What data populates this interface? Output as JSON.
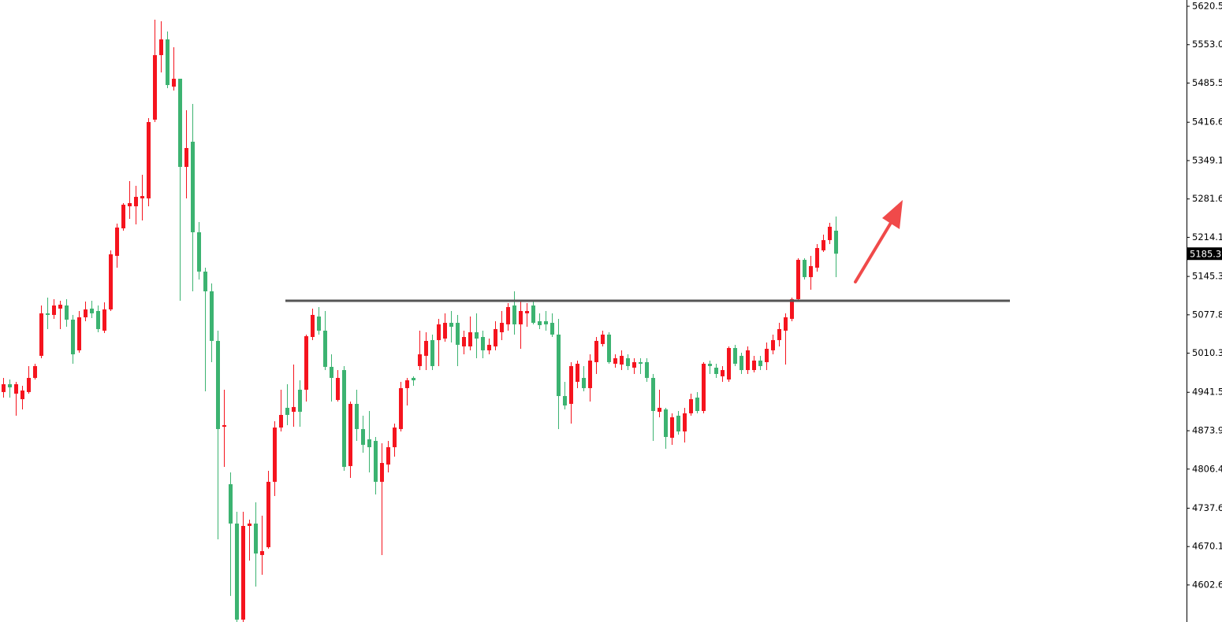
{
  "chart_data": {
    "type": "candlestick",
    "up_color": "#f5141e",
    "down_color": "#3cb371",
    "level_color": "#555555",
    "ylim": [
      4537.4,
      5631.6
    ],
    "yticks": [
      5620.5,
      {
        "value": 5553,
        "label": "5553.0"
      },
      5485.5,
      5416.6,
      5349.1,
      5281.6,
      5214.1,
      5145.3,
      5077.8,
      5010.3,
      4941.5,
      4873.9,
      4806.4,
      4737.6,
      4670.1,
      4602.6
    ],
    "last_price": 5185.3,
    "level": 5102.5,
    "candles": [
      [
        4941.9,
        4966.8,
        4932.2,
        4955.7
      ],
      [
        4955.7,
        4964.0,
        4932.2,
        4950.2
      ],
      [
        4939.1,
        4959.9,
        4900.3,
        4955.7
      ],
      [
        4929.4,
        4952.9,
        4911.4,
        4944.6
      ],
      [
        4941.9,
        4987.6,
        4939.1,
        4966.8
      ],
      [
        4966.8,
        4991.7,
        4964.0,
        4987.6
      ],
      [
        5005.6,
        5094.2,
        5001.4,
        5080.4
      ],
      [
        5080.4,
        5108.1,
        5052.7,
        5077.6
      ],
      [
        5077.6,
        5105.3,
        5070.7,
        5094.2
      ],
      [
        5088.7,
        5102.5,
        5052.7,
        5095.6
      ],
      [
        5094.2,
        5105.3,
        5056.8,
        5069.3
      ],
      [
        5069.3,
        5077.6,
        4991.7,
        5008.3
      ],
      [
        5015.3,
        5084.5,
        5011.1,
        5073.4
      ],
      [
        5073.4,
        5101.1,
        5066.5,
        5087.3
      ],
      [
        5088.7,
        5102.5,
        5072.1,
        5080.4
      ],
      [
        5084.5,
        5094.2,
        5047.1,
        5052.7
      ],
      [
        5049.9,
        5099.8,
        5045.7,
        5087.3
      ],
      [
        5087.3,
        5191.2,
        5084.5,
        5184.2
      ],
      [
        5181.5,
        5238.3,
        5160.7,
        5231.3
      ],
      [
        5229.9,
        5274.3,
        5225.8,
        5271.5
      ],
      [
        5268.7,
        5313.0,
        5246.6,
        5274.3
      ],
      [
        5268.7,
        5304.7,
        5236.9,
        5285.3
      ],
      [
        5282.6,
        5324.1,
        5243.8,
        5286.7
      ],
      [
        5282.6,
        5423.8,
        5268.7,
        5416.9
      ],
      [
        5421.1,
        5597.0,
        5416.9,
        5534.6
      ],
      [
        5534.6,
        5594.2,
        5504.2,
        5562.3
      ],
      [
        5562.3,
        5576.2,
        5476.5,
        5482.0
      ],
      [
        5479.2,
        5548.5,
        5472.3,
        5493.1
      ],
      [
        5493.1,
        5493.1,
        5102.5,
        5338.0
      ],
      [
        5338.0,
        5437.7,
        5282.6,
        5371.2
      ],
      [
        5382.3,
        5448.8,
        5119.1,
        5223.0
      ],
      [
        5223.0,
        5241.0,
        5139.9,
        5153.8
      ],
      [
        5153.8,
        5160.7,
        4943.3,
        5119.1
      ],
      [
        5119.1,
        5133.0,
        4994.5,
        5031.9
      ],
      [
        5031.9,
        5049.9,
        4682.9,
        4876.8
      ],
      [
        4880.9,
        4946.0,
        4810.3,
        4883.7
      ],
      [
        4779.8,
        4800.6,
        4583.2,
        4710.6
      ],
      [
        4710.6,
        4731.3,
        4537.4,
        4541.6
      ],
      [
        4541.6,
        4731.3,
        4537.4,
        4706.4
      ],
      [
        4706.4,
        4717.5,
        4645.5,
        4710.6
      ],
      [
        4710.6,
        4748.0,
        4599.8,
        4657.9
      ],
      [
        4655.2,
        4724.4,
        4620.5,
        4662.1
      ],
      [
        4669.0,
        4803.4,
        4666.3,
        4784.0
      ],
      [
        4784.0,
        4890.6,
        4759.0,
        4879.5
      ],
      [
        4879.5,
        4946.0,
        4872.6,
        4901.7
      ],
      [
        4914.2,
        4955.7,
        4883.7,
        4901.7
      ],
      [
        4907.2,
        4990.3,
        4880.9,
        4915.6
      ],
      [
        4946.0,
        4962.6,
        4880.9,
        4907.2
      ],
      [
        4946.0,
        5043.0,
        4925.2,
        5040.2
      ],
      [
        5038.8,
        5088.7,
        5033.3,
        5077.6
      ],
      [
        5074.8,
        5091.4,
        5043.0,
        5049.9
      ],
      [
        5049.9,
        5084.5,
        4980.6,
        4986.2
      ],
      [
        4986.2,
        5008.3,
        4925.2,
        4966.8
      ],
      [
        4928.0,
        4980.6,
        4925.2,
        4966.8
      ],
      [
        4980.6,
        4987.6,
        4803.4,
        4810.3
      ],
      [
        4811.7,
        4925.2,
        4790.9,
        4921.1
      ],
      [
        4921.1,
        4946.0,
        4856.0,
        4876.8
      ],
      [
        4876.8,
        4900.3,
        4835.2,
        4849.1
      ],
      [
        4858.8,
        4908.6,
        4800.6,
        4844.9
      ],
      [
        4856.0,
        4862.9,
        4761.8,
        4784.0
      ],
      [
        4784.0,
        4851.8,
        4655.2,
        4817.2
      ],
      [
        4814.4,
        4856.0,
        4800.6,
        4844.9
      ],
      [
        4844.9,
        4886.5,
        4828.3,
        4879.5
      ],
      [
        4876.8,
        4959.9,
        4872.6,
        4948.8
      ],
      [
        4948.8,
        4966.8,
        4918.3,
        4962.6
      ],
      [
        4966.8,
        4969.6,
        4952.9,
        4962.6
      ],
      [
        4987.6,
        5049.9,
        4980.6,
        5008.3
      ],
      [
        5005.6,
        5047.1,
        4980.6,
        5031.9
      ],
      [
        5033.3,
        5043.0,
        4980.6,
        4987.6
      ],
      [
        5033.3,
        5070.7,
        4987.6,
        5061.0
      ],
      [
        5036.0,
        5080.4,
        5030.5,
        5063.7
      ],
      [
        5063.7,
        5084.5,
        5029.1,
        5056.8
      ],
      [
        5063.7,
        5077.6,
        4987.6,
        5025.0
      ],
      [
        5022.2,
        5049.9,
        5008.3,
        5038.8
      ],
      [
        5022.2,
        5074.8,
        5015.3,
        5047.1
      ],
      [
        5047.1,
        5080.4,
        5001.4,
        5036.0
      ],
      [
        5038.8,
        5049.9,
        5001.4,
        5015.3
      ],
      [
        5015.3,
        5036.0,
        5008.3,
        5025.0
      ],
      [
        5022.2,
        5066.5,
        5015.3,
        5052.7
      ],
      [
        5047.1,
        5084.5,
        5033.3,
        5063.7
      ],
      [
        5061.0,
        5098.4,
        5049.9,
        5091.4
      ],
      [
        5094.2,
        5119.1,
        5043.0,
        5061.0
      ],
      [
        5061.0,
        5102.5,
        5018.0,
        5084.5
      ],
      [
        5080.4,
        5098.4,
        5056.8,
        5084.5
      ],
      [
        5094.2,
        5102.5,
        5061.0,
        5063.7
      ],
      [
        5066.5,
        5080.4,
        5052.7,
        5059.6
      ],
      [
        5066.5,
        5084.5,
        5049.9,
        5061.0
      ],
      [
        5063.7,
        5080.4,
        5038.8,
        5043.0
      ],
      [
        5043.0,
        5070.7,
        4876.8,
        4934.9
      ],
      [
        4934.9,
        4959.9,
        4911.4,
        4918.3
      ],
      [
        4921.1,
        4994.5,
        4886.5,
        4987.6
      ],
      [
        4959.9,
        4997.3,
        4948.8,
        4991.7
      ],
      [
        4966.8,
        4987.6,
        4943.3,
        4948.8
      ],
      [
        4948.8,
        5008.3,
        4925.2,
        4997.3
      ],
      [
        4994.5,
        5038.8,
        4973.7,
        5031.9
      ],
      [
        5026.4,
        5049.9,
        5022.2,
        5043.0
      ],
      [
        5043.0,
        5047.1,
        4991.7,
        4994.5
      ],
      [
        4991.7,
        5008.3,
        4984.8,
        5001.4
      ],
      [
        4990.3,
        5015.3,
        4980.6,
        5005.6
      ],
      [
        5001.4,
        5008.3,
        4980.6,
        4987.6
      ],
      [
        4984.8,
        5001.4,
        4973.7,
        4994.5
      ],
      [
        4994.5,
        5001.4,
        4973.7,
        4991.7
      ],
      [
        4994.5,
        5001.4,
        4959.9,
        4966.8
      ],
      [
        4966.8,
        4973.7,
        4856.0,
        4908.6
      ],
      [
        4907.2,
        4946.0,
        4897.5,
        4914.2
      ],
      [
        4911.4,
        4914.2,
        4842.1,
        4862.9
      ],
      [
        4861.5,
        4904.5,
        4849.1,
        4897.5
      ],
      [
        4900.3,
        4908.6,
        4867.1,
        4872.6
      ],
      [
        4872.6,
        4914.2,
        4853.2,
        4904.5
      ],
      [
        4904.5,
        4939.1,
        4900.3,
        4929.4
      ],
      [
        4932.2,
        4941.9,
        4904.5,
        4908.6
      ],
      [
        4908.6,
        4994.5,
        4904.5,
        4991.7
      ],
      [
        4991.7,
        4997.3,
        4973.7,
        4987.6
      ],
      [
        4984.8,
        4991.7,
        4966.8,
        4973.7
      ],
      [
        4969.6,
        4987.6,
        4959.9,
        4980.6
      ],
      [
        4964.0,
        5022.2,
        4959.9,
        5019.4
      ],
      [
        5019.4,
        5025.0,
        4987.6,
        4991.7
      ],
      [
        5005.6,
        5011.1,
        4973.7,
        4980.6
      ],
      [
        4980.6,
        5022.2,
        4973.7,
        5015.3
      ],
      [
        4980.6,
        5005.6,
        4976.5,
        4997.3
      ],
      [
        4997.3,
        5005.6,
        4980.6,
        4987.6
      ],
      [
        4994.5,
        5029.1,
        4980.6,
        5018.0
      ],
      [
        5015.3,
        5043.0,
        5008.3,
        5033.3
      ],
      [
        5033.3,
        5063.7,
        5022.2,
        5052.7
      ],
      [
        5049.9,
        5080.4,
        4990.3,
        5073.4
      ],
      [
        5070.7,
        5108.1,
        5066.5,
        5105.3
      ],
      [
        5105.3,
        5177.3,
        5102.5,
        5174.5
      ],
      [
        5174.5,
        5177.3,
        5139.9,
        5144.1
      ],
      [
        5144.1,
        5181.5,
        5121.9,
        5163.5
      ],
      [
        5160.7,
        5202.2,
        5153.8,
        5195.3
      ],
      [
        5191.2,
        5218.9,
        5188.4,
        5209.2
      ],
      [
        5209.2,
        5239.6,
        5202.2,
        5232.7
      ],
      [
        5225.8,
        5250.7,
        5144.1,
        5185.3
      ]
    ]
  }
}
